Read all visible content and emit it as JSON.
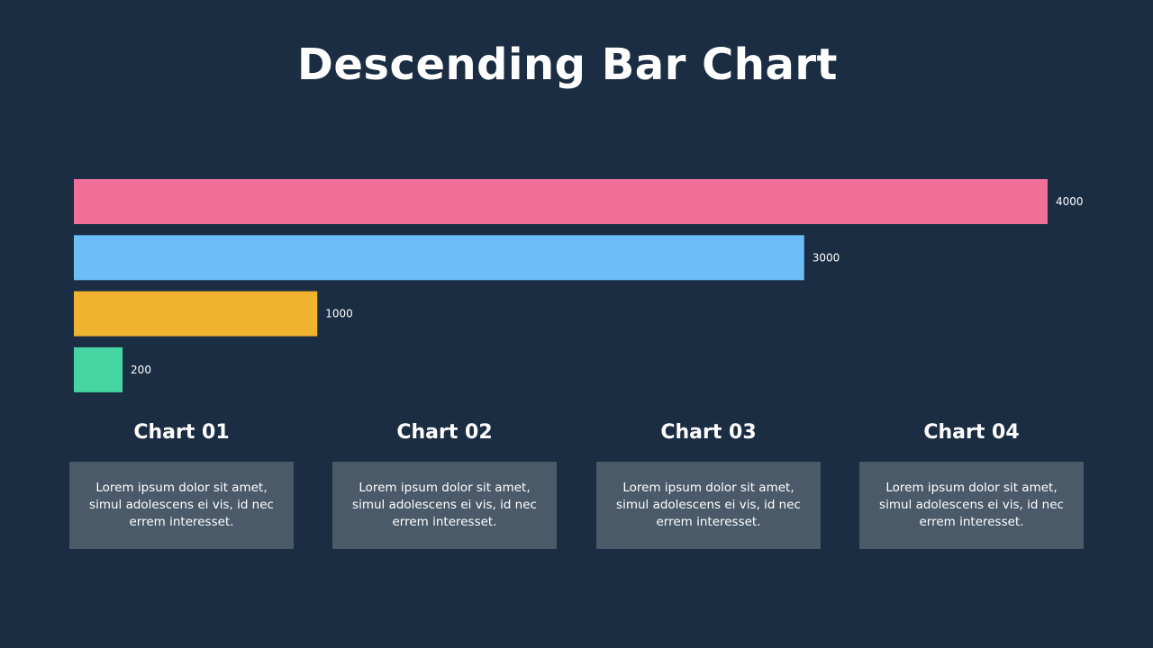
{
  "title": "Descending Bar Chart",
  "chart_data": {
    "type": "bar",
    "orientation": "horizontal",
    "categories": [
      "Chart 01",
      "Chart 02",
      "Chart 03",
      "Chart 04"
    ],
    "values": [
      4000,
      3000,
      1000,
      200
    ],
    "value_labels": [
      "4000",
      "3000",
      "1000",
      "200"
    ],
    "colors": [
      "#f0709a",
      "#6cbdf8",
      "#f0b32e",
      "#46d4a2"
    ],
    "xlim": [
      0,
      4000
    ],
    "grid": false,
    "legend": "none"
  },
  "cards": [
    {
      "heading": "Chart 01",
      "text": "Lorem ipsum dolor sit amet, simul adolescens ei vis, id nec errem interesset."
    },
    {
      "heading": "Chart 02",
      "text": "Lorem ipsum dolor sit amet, simul adolescens ei vis, id nec errem interesset."
    },
    {
      "heading": "Chart 03",
      "text": "Lorem ipsum dolor sit amet, simul adolescens ei vis, id nec errem interesset."
    },
    {
      "heading": "Chart 04",
      "text": "Lorem ipsum dolor sit amet, simul adolescens ei vis, id nec errem interesset."
    }
  ],
  "colors": {
    "background": "#1b2d42",
    "card_background": "#4a5a69",
    "last_label": "#2a2a2a"
  }
}
